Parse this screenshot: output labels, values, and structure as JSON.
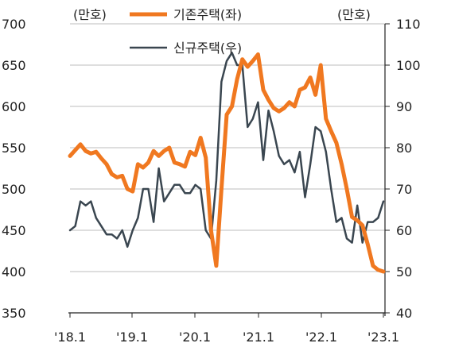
{
  "chart_data": {
    "type": "line",
    "left_unit": "(만호)",
    "right_unit": "(만호)",
    "y_left": {
      "range": [
        350,
        700
      ],
      "ticks": [
        "350",
        "400",
        "450",
        "500",
        "550",
        "600",
        "650",
        "700"
      ]
    },
    "y_right": {
      "range": [
        40,
        110
      ],
      "ticks": [
        "40",
        "50",
        "60",
        "70",
        "80",
        "90",
        "100",
        "110"
      ]
    },
    "x_ticks": [
      "'18.1",
      "'19.1",
      "'20.1",
      "'21.1",
      "'22.1",
      "'23.1"
    ],
    "grid": "horizontal",
    "legend_position": "top-center",
    "series": [
      {
        "name": "기존주택(좌)",
        "axis": "left",
        "color": "#F07820",
        "values": [
          540,
          547,
          554,
          546,
          543,
          545,
          537,
          530,
          518,
          514,
          516,
          500,
          497,
          530,
          526,
          532,
          546,
          540,
          546,
          550,
          532,
          530,
          527,
          545,
          541,
          562,
          538,
          450,
          407,
          500,
          590,
          600,
          633,
          657,
          648,
          655,
          663,
          620,
          608,
          598,
          594,
          598,
          605,
          600,
          620,
          623,
          635,
          614,
          650,
          585,
          570,
          556,
          530,
          500,
          466,
          462,
          456,
          433,
          407,
          402,
          400
        ]
      },
      {
        "name": "신규주택(우)",
        "axis": "right",
        "color": "#3A4650",
        "values": [
          60,
          61,
          67,
          66,
          67,
          63,
          61,
          59,
          59,
          58,
          60,
          56,
          60,
          63,
          70,
          70,
          62,
          75,
          67,
          69,
          71,
          71,
          69,
          69,
          71,
          70,
          60,
          58,
          72,
          96,
          101,
          103,
          100,
          100,
          85,
          87,
          91,
          77,
          89,
          84,
          78,
          76,
          77,
          74,
          79,
          68,
          76,
          85,
          84,
          79,
          70,
          62,
          63,
          58,
          57,
          66,
          57,
          62,
          62,
          63,
          67
        ]
      }
    ]
  }
}
